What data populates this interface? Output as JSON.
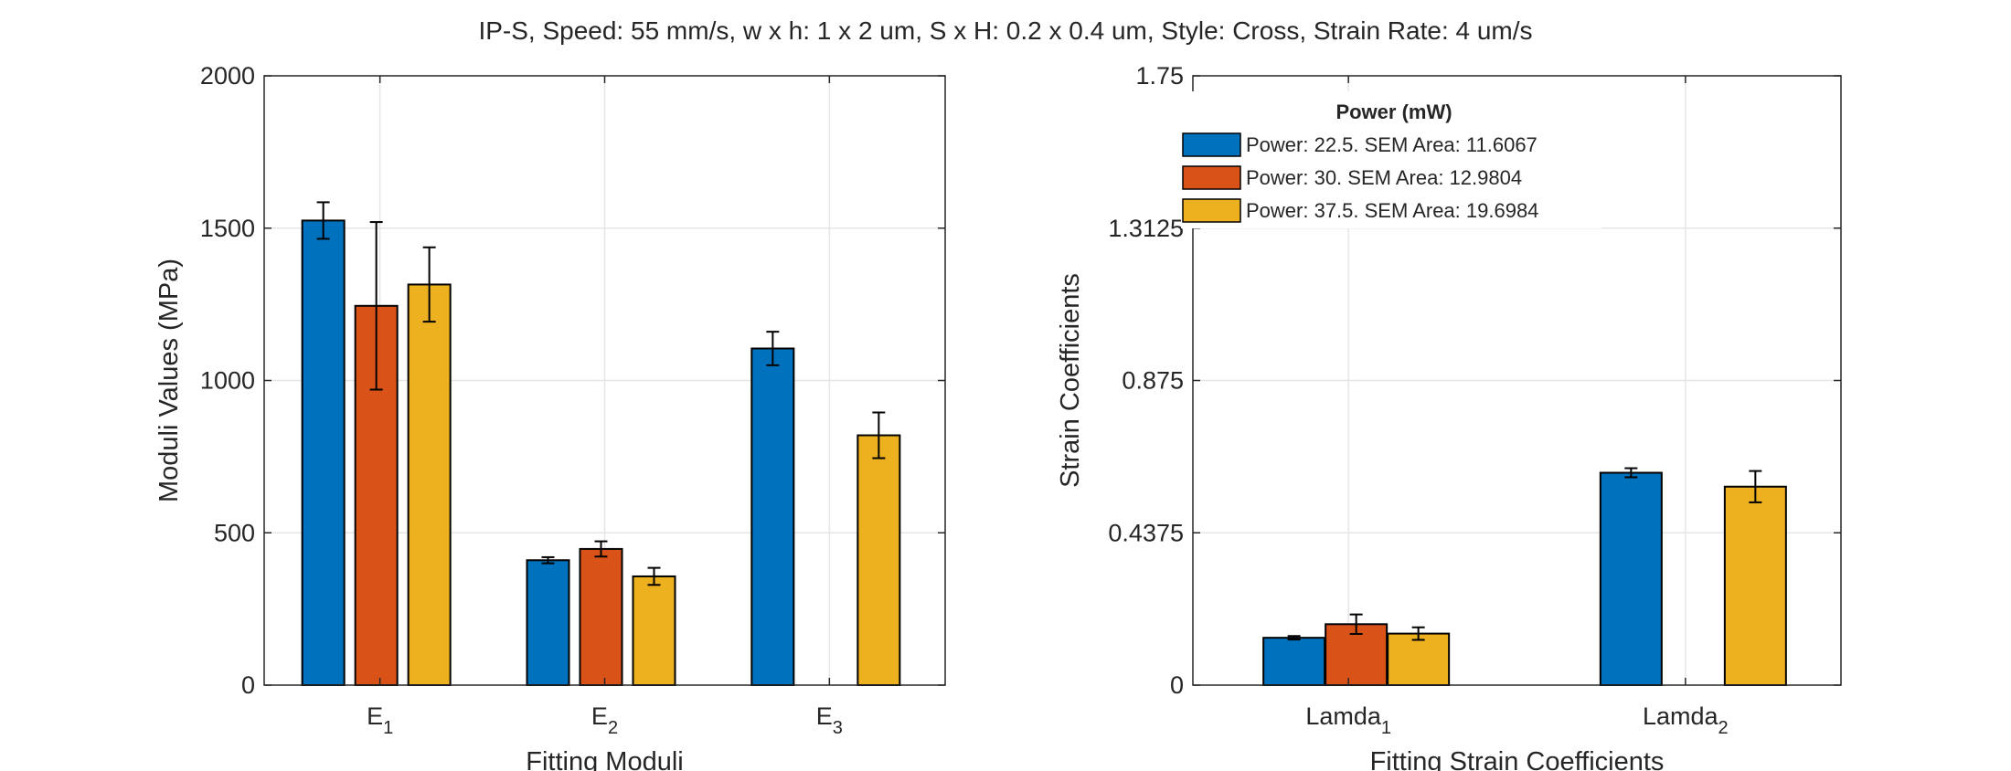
{
  "figure": {
    "title": "IP-S, Speed: 55 mm/s, w x h: 1 x 2 um, S x H: 0.2 x 0.4 um, Style: Cross, Strain Rate: 4 um/s"
  },
  "colors": {
    "series": [
      "#0072BD",
      "#D95319",
      "#EDB120"
    ],
    "axis": "#262626",
    "grid": "#e6e6e6",
    "errorbar": "#000000"
  },
  "legend": {
    "title": "Power (mW)",
    "placement": "top-left of right panel",
    "entries": [
      "Power: 22.5. SEM Area: 11.6067",
      "Power: 30. SEM Area: 12.9804",
      "Power: 37.5. SEM Area: 19.6984"
    ]
  },
  "chart_data": [
    {
      "type": "bar",
      "grouped": true,
      "xlabel": "Fitting Moduli",
      "ylabel": "Moduli Values (MPa)",
      "ylim": [
        0,
        2000
      ],
      "yticks": [
        0,
        500,
        1000,
        1500,
        2000
      ],
      "yticklabels": [
        "0",
        "500",
        "1000",
        "1500",
        "2000"
      ],
      "grid": true,
      "categories": [
        {
          "base": "E",
          "sub": "1"
        },
        {
          "base": "E",
          "sub": "2"
        },
        {
          "base": "E",
          "sub": "3"
        }
      ],
      "series": [
        {
          "name": "Power: 22.5. SEM Area: 11.6067",
          "values": [
            1525,
            410,
            1105
          ],
          "errors": [
            60,
            10,
            55
          ]
        },
        {
          "name": "Power: 30. SEM Area: 12.9804",
          "values": [
            1245,
            447,
            null
          ],
          "errors": [
            275,
            25,
            null
          ]
        },
        {
          "name": "Power: 37.5. SEM Area: 19.6984",
          "values": [
            1315,
            357,
            820
          ],
          "errors": [
            122,
            28,
            75
          ]
        }
      ]
    },
    {
      "type": "bar",
      "grouped": true,
      "xlabel": "Fitting Strain Coefficients",
      "ylabel": "Strain Coefficients",
      "ylim": [
        0,
        1.75
      ],
      "yticks": [
        0,
        0.4375,
        0.875,
        1.3125,
        1.75
      ],
      "yticklabels": [
        "0",
        "0.4375",
        "0.875",
        "1.3125",
        "1.75"
      ],
      "grid": true,
      "categories": [
        {
          "base": "Lamda",
          "sub": "1"
        },
        {
          "base": "Lamda",
          "sub": "2"
        }
      ],
      "series": [
        {
          "name": "Power: 22.5. SEM Area: 11.6067",
          "values": [
            0.136,
            0.61
          ],
          "errors": [
            0.005,
            0.013
          ]
        },
        {
          "name": "Power: 30. SEM Area: 12.9804",
          "values": [
            0.175,
            null
          ],
          "errors": [
            0.028,
            null
          ]
        },
        {
          "name": "Power: 37.5. SEM Area: 19.6984",
          "values": [
            0.148,
            0.57
          ],
          "errors": [
            0.018,
            0.045
          ]
        }
      ]
    }
  ]
}
